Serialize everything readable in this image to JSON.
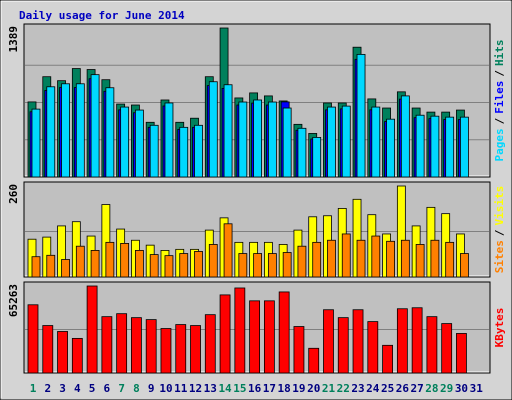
{
  "chart_data": {
    "type": "bar",
    "title": "Daily usage for June 2014",
    "legend_separator": "/",
    "categories": [
      "1",
      "2",
      "3",
      "4",
      "5",
      "6",
      "7",
      "8",
      "9",
      "10",
      "11",
      "12",
      "13",
      "14",
      "15",
      "16",
      "17",
      "18",
      "19",
      "20",
      "21",
      "22",
      "23",
      "24",
      "25",
      "26",
      "27",
      "28",
      "29",
      "30",
      "31"
    ],
    "category_colors": [
      "#00805c",
      "#000080",
      "#000080",
      "#000080",
      "#000080",
      "#000080",
      "#00805c",
      "#00805c",
      "#000080",
      "#000080",
      "#000080",
      "#000080",
      "#000080",
      "#00805c",
      "#00805c",
      "#000080",
      "#000080",
      "#000080",
      "#000080",
      "#000080",
      "#00805c",
      "#00805c",
      "#000080",
      "#000080",
      "#000080",
      "#000080",
      "#000080",
      "#00805c",
      "#00805c",
      "#000080",
      "#000080"
    ],
    "panels": [
      {
        "ylim": [
          0,
          1389
        ],
        "grid_divisions": 4,
        "series": [
          {
            "name": "Hits",
            "color": "#00805c",
            "values": [
              700,
              935,
              898,
              1011,
              1002,
              907,
              680,
              671,
              510,
              718,
              510,
              548,
              935,
              1389,
              737,
              784,
              756,
              709,
              491,
              406,
              690,
              690,
              1210,
              728,
              643,
              794,
              643,
              605,
              605,
              624,
              null
            ]
          },
          {
            "name": "Files",
            "color": "#0000ff",
            "values": [
              608,
              807,
              834,
              834,
              916,
              799,
              626,
              599,
              463,
              662,
              444,
              463,
              852,
              826,
              671,
              689,
              671,
              700,
              436,
              354,
              626,
              635,
              1097,
              626,
              517,
              726,
              553,
              544,
              536,
              536,
              null
            ]
          },
          {
            "name": "Pages",
            "color": "#00d8ff",
            "values": [
              633,
              841,
              869,
              869,
              954,
              832,
              652,
              624,
              482,
              690,
              463,
              482,
              888,
              860,
              699,
              718,
              699,
              643,
              454,
              369,
              652,
              661,
              1143,
              652,
              539,
              756,
              576,
              567,
              558,
              558,
              null
            ]
          }
        ]
      },
      {
        "ylim": [
          0,
          260
        ],
        "grid_divisions": 2,
        "series": [
          {
            "name": "Visits",
            "color": "#ffff00",
            "values": [
              108,
              114,
              146,
              158,
              117,
              207,
              137,
              105,
              91,
              76,
              79,
              79,
              134,
              169,
              99,
              99,
              99,
              93,
              134,
              172,
              175,
              196,
              222,
              178,
              123,
              260,
              146,
              199,
              181,
              123,
              null
            ]
          },
          {
            "name": "Sites",
            "color": "#ff8000",
            "values": [
              58,
              62,
              50,
              88,
              76,
              99,
              96,
              76,
              64,
              61,
              67,
              73,
              93,
              152,
              67,
              67,
              67,
              70,
              88,
              99,
              105,
              123,
              105,
              117,
              102,
              105,
              93,
              105,
              99,
              67,
              null
            ]
          }
        ]
      },
      {
        "ylim": [
          0,
          65263
        ],
        "grid_divisions": 2,
        "series": [
          {
            "name": "KBytes",
            "color": "#ff0000",
            "values": [
              51178,
              35600,
              31150,
              25960,
              65263,
              42270,
              44500,
              41530,
              40050,
              33370,
              36340,
              35600,
              43760,
              58590,
              63780,
              54140,
              54140,
              60810,
              34860,
              18540,
              47460,
              41530,
              47460,
              38560,
              20770,
              48200,
              48950,
              42270,
              37080,
              29660,
              null
            ]
          }
        ]
      }
    ]
  }
}
